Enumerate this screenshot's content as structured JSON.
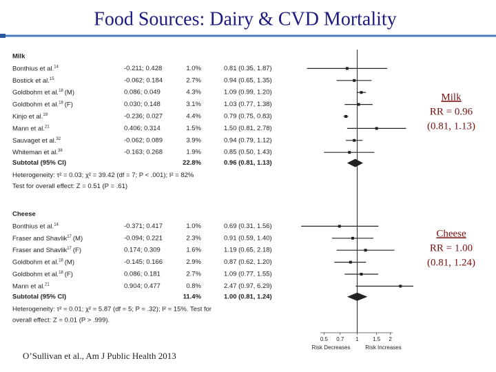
{
  "title": "Food Sources:  Dairy & CVD Mortality",
  "citation": "O’Sullivan et al., Am J Public Health 2013",
  "chart_data": {
    "type": "forest",
    "log": true,
    "xlim": [
      0.26,
      2.8
    ],
    "xticks": [
      0.5,
      0.7,
      1,
      1.5,
      2
    ],
    "x_labels": [
      "Risk Decreases",
      "Risk Increases"
    ],
    "color": "#222222",
    "groups": [
      {
        "name": "Milk",
        "studies": [
          {
            "name": "Bonthius et al.",
            "ref": "14"
          },
          {
            "name": "Bostick et al.",
            "ref": "15"
          },
          {
            "name": "Goldbohm et al.",
            "ref": "18",
            "suffix": "(M)"
          },
          {
            "name": "Goldbohm et al.",
            "ref": "18",
            "suffix": "(F)"
          },
          {
            "name": "Kinjo et al.",
            "ref": "19"
          },
          {
            "name": "Mann et al.",
            "ref": "21"
          },
          {
            "name": "Sauvaget et al.",
            "ref": "32"
          },
          {
            "name": "Whiteman et al.",
            "ref": "38"
          }
        ],
        "coef": [
          "-0.211; 0.428",
          "-0.062; 0.184",
          "0.086; 0.049",
          "0.030; 0.148",
          "-0.236; 0.027",
          "0.406; 0.314",
          "-0.062; 0.089",
          "-0.163; 0.268"
        ],
        "weights": [
          "1.0%",
          "2.7%",
          "4.3%",
          "3.1%",
          "4.4%",
          "1.5%",
          "3.9%",
          "1.9%"
        ],
        "values": [
          0.81,
          0.94,
          1.09,
          1.03,
          0.79,
          1.5,
          0.94,
          0.85
        ],
        "lower": [
          0.35,
          0.65,
          0.99,
          0.77,
          0.75,
          0.81,
          0.79,
          0.5
        ],
        "upper": [
          1.87,
          1.35,
          1.2,
          1.38,
          0.83,
          2.78,
          1.12,
          1.43
        ],
        "value_labels": [
          "0.81 (0.35, 1.87)",
          "0.94 (0.65, 1.35)",
          "1.09 (0.99, 1.20)",
          "1.03 (0.77, 1.38)",
          "0.79 (0.75, 0.83)",
          "1.50 (0.81, 2.78)",
          "0.94 (0.79, 1.12)",
          "0.85 (0.50, 1.43)"
        ],
        "subtotal": {
          "name": "Subtotal (95% CI)",
          "weight": "22.8%",
          "value": 0.96,
          "lower": 0.81,
          "upper": 1.13,
          "value_label": "0.96 (0.81, 1.13)"
        },
        "heterogeneity": [
          "Heterogeneity: τ² = 0.03; χ² = 39.42 (df = 7; P < .001); I² = 82%",
          "Test for overall effect: Z = 0.51 (P = .61)"
        ],
        "annotation": [
          "Milk",
          "RR = 0.96",
          "(0.81, 1.13)"
        ]
      },
      {
        "name": "Cheese",
        "studies": [
          {
            "name": "Bonthius et al.",
            "ref": "14"
          },
          {
            "name": "Fraser and Shavlik",
            "ref": "17",
            "suffix": "(M)"
          },
          {
            "name": "Fraser and Shavlik",
            "ref": "17",
            "suffix": "(F)"
          },
          {
            "name": "Goldbohm et al.",
            "ref": "18",
            "suffix": "(M)"
          },
          {
            "name": "Goldbohm et al.",
            "ref": "18",
            "suffix": "(F)"
          },
          {
            "name": "Mann et al.",
            "ref": "21"
          }
        ],
        "coef": [
          "-0.371; 0.417",
          "-0.094; 0.221",
          "0.174; 0.309",
          "-0.145; 0.166",
          "0.086; 0.181",
          "0.904; 0.477"
        ],
        "weights": [
          "1.0%",
          "2.3%",
          "1.6%",
          "2.9%",
          "2.7%",
          "0.8%"
        ],
        "values": [
          0.69,
          0.91,
          1.19,
          0.87,
          1.09,
          2.47
        ],
        "lower": [
          0.31,
          0.59,
          0.65,
          0.62,
          0.77,
          0.97
        ],
        "upper": [
          1.56,
          1.4,
          2.18,
          1.2,
          1.55,
          6.29
        ],
        "value_labels": [
          "0.69 (0.31, 1.56)",
          "0.91 (0.59, 1.40)",
          "1.19 (0.65, 2.18)",
          "0.87 (0.62, 1.20)",
          "1.09 (0.77, 1.55)",
          "2.47 (0.97, 6.29)"
        ],
        "subtotal": {
          "name": "Subtotal (95% CI)",
          "weight": "11.4%",
          "value": 1.0,
          "lower": 0.81,
          "upper": 1.24,
          "value_label": "1.00 (0.81, 1.24)"
        },
        "heterogeneity": [
          "Heterogeneity: τ² = 0.01; χ² = 5.87 (df = 5; P = .32); I² = 15%. Test for",
          "overall effect: Z = 0.01 (P > .999)."
        ],
        "annotation": [
          "Cheese",
          "RR = 1.00",
          "(0.81, 1.24)"
        ]
      }
    ]
  }
}
